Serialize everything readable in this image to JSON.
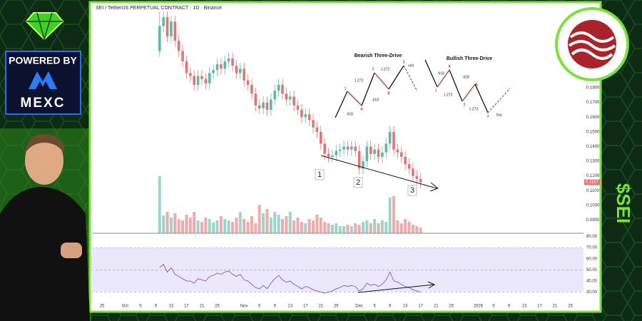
{
  "chart_data": {
    "type": "candlestick",
    "title": "SEI / TetherUS PERPETUAL CONTRACT · 1D · Binance",
    "up_color": "#5fb8a6",
    "down_color": "#e57373",
    "xlim": [
      -2.8,
      125.8
    ],
    "xticks": [
      {
        "value": 0,
        "label": "25"
      },
      {
        "value": 6,
        "label": "Oct"
      },
      {
        "value": 10,
        "label": "5"
      },
      {
        "value": 14,
        "label": "9"
      },
      {
        "value": 18,
        "label": "13"
      },
      {
        "value": 22,
        "label": "17"
      },
      {
        "value": 26,
        "label": "21"
      },
      {
        "value": 30,
        "label": "25"
      },
      {
        "value": 37,
        "label": "Nov"
      },
      {
        "value": 41,
        "label": "5"
      },
      {
        "value": 45,
        "label": "9"
      },
      {
        "value": 49,
        "label": "13"
      },
      {
        "value": 53,
        "label": "17"
      },
      {
        "value": 57,
        "label": "21"
      },
      {
        "value": 61,
        "label": "25"
      },
      {
        "value": 67,
        "label": "Dec"
      },
      {
        "value": 71,
        "label": "5"
      },
      {
        "value": 75,
        "label": "9"
      },
      {
        "value": 79,
        "label": "13"
      },
      {
        "value": 83,
        "label": "17"
      },
      {
        "value": 87,
        "label": "21"
      },
      {
        "value": 91,
        "label": "25"
      },
      {
        "value": 98,
        "label": "2026"
      },
      {
        "value": 102,
        "label": "5"
      },
      {
        "value": 106,
        "label": "9"
      },
      {
        "value": 110,
        "label": "13"
      },
      {
        "value": 114,
        "label": "17"
      },
      {
        "value": 118,
        "label": "21"
      },
      {
        "value": 122,
        "label": "25"
      }
    ],
    "ylim": [
      0.081,
      0.2373
    ],
    "yticks": [
      {
        "value": 0.09,
        "label": "0.0900"
      },
      {
        "value": 0.1,
        "label": "0.1000"
      },
      {
        "value": 0.11,
        "label": "0.1100"
      },
      {
        "value": 0.12,
        "label": "0.1200"
      },
      {
        "value": 0.13,
        "label": "0.1300"
      },
      {
        "value": 0.14,
        "label": "0.1400"
      },
      {
        "value": 0.15,
        "label": "0.1500"
      },
      {
        "value": 0.16,
        "label": "0.1600"
      },
      {
        "value": 0.17,
        "label": "0.1700"
      },
      {
        "value": 0.18,
        "label": "0.1800"
      }
    ],
    "x": [
      15,
      16,
      17,
      18,
      19,
      20,
      21,
      22,
      23,
      24,
      25,
      26,
      27,
      28,
      29,
      30,
      31,
      32,
      33,
      34,
      35,
      36,
      37,
      38,
      39,
      40,
      41,
      42,
      43,
      44,
      45,
      46,
      47,
      48,
      49,
      50,
      51,
      52,
      53,
      54,
      55,
      56,
      57,
      58,
      59,
      60,
      61,
      62,
      63,
      64,
      65,
      66,
      67,
      68,
      69,
      70,
      71,
      72,
      73,
      74,
      75,
      76,
      77,
      78,
      79,
      80,
      81,
      82,
      83
    ],
    "open": [
      0.205,
      0.222,
      0.228,
      0.215,
      0.225,
      0.212,
      0.205,
      0.198,
      0.19,
      0.188,
      0.182,
      0.188,
      0.186,
      0.183,
      0.19,
      0.192,
      0.196,
      0.193,
      0.198,
      0.2,
      0.195,
      0.19,
      0.193,
      0.185,
      0.182,
      0.176,
      0.168,
      0.166,
      0.17,
      0.165,
      0.172,
      0.178,
      0.182,
      0.176,
      0.172,
      0.174,
      0.168,
      0.165,
      0.16,
      0.162,
      0.158,
      0.153,
      0.15,
      0.142,
      0.135,
      0.133,
      0.134,
      0.137,
      0.138,
      0.14,
      0.138,
      0.14,
      0.137,
      0.125,
      0.13,
      0.14,
      0.135,
      0.138,
      0.133,
      0.136,
      0.142,
      0.15,
      0.138,
      0.136,
      0.133,
      0.128,
      0.125,
      0.12,
      0.118
    ],
    "high": [
      0.232,
      0.232,
      0.232,
      0.229,
      0.229,
      0.216,
      0.209,
      0.202,
      0.194,
      0.192,
      0.192,
      0.192,
      0.19,
      0.194,
      0.196,
      0.2,
      0.2,
      0.202,
      0.204,
      0.204,
      0.199,
      0.197,
      0.197,
      0.189,
      0.186,
      0.18,
      0.172,
      0.174,
      0.174,
      0.176,
      0.182,
      0.186,
      0.186,
      0.18,
      0.178,
      0.178,
      0.172,
      0.169,
      0.166,
      0.166,
      0.162,
      0.157,
      0.154,
      0.146,
      0.139,
      0.138,
      0.141,
      0.142,
      0.144,
      0.144,
      0.144,
      0.144,
      0.141,
      0.134,
      0.144,
      0.144,
      0.142,
      0.142,
      0.14,
      0.146,
      0.154,
      0.154,
      0.142,
      0.14,
      0.137,
      0.132,
      0.129,
      0.124,
      0.122
    ],
    "low": [
      0.201,
      0.218,
      0.211,
      0.211,
      0.208,
      0.201,
      0.194,
      0.186,
      0.184,
      0.178,
      0.178,
      0.182,
      0.179,
      0.179,
      0.186,
      0.188,
      0.189,
      0.189,
      0.194,
      0.191,
      0.186,
      0.186,
      0.181,
      0.178,
      0.172,
      0.164,
      0.162,
      0.162,
      0.161,
      0.161,
      0.168,
      0.174,
      0.172,
      0.168,
      0.168,
      0.164,
      0.161,
      0.156,
      0.156,
      0.154,
      0.149,
      0.146,
      0.138,
      0.131,
      0.129,
      0.129,
      0.13,
      0.133,
      0.134,
      0.134,
      0.134,
      0.133,
      0.121,
      0.121,
      0.126,
      0.131,
      0.131,
      0.129,
      0.129,
      0.132,
      0.138,
      0.134,
      0.132,
      0.129,
      0.124,
      0.121,
      0.116,
      0.114,
      0.1117
    ],
    "close": [
      0.222,
      0.228,
      0.215,
      0.225,
      0.212,
      0.205,
      0.198,
      0.19,
      0.188,
      0.182,
      0.188,
      0.186,
      0.183,
      0.19,
      0.192,
      0.196,
      0.193,
      0.198,
      0.2,
      0.195,
      0.19,
      0.193,
      0.185,
      0.182,
      0.176,
      0.168,
      0.166,
      0.17,
      0.165,
      0.172,
      0.178,
      0.182,
      0.176,
      0.172,
      0.174,
      0.168,
      0.165,
      0.16,
      0.162,
      0.158,
      0.153,
      0.15,
      0.142,
      0.135,
      0.133,
      0.134,
      0.137,
      0.138,
      0.14,
      0.138,
      0.14,
      0.137,
      0.125,
      0.13,
      0.14,
      0.135,
      0.138,
      0.133,
      0.136,
      0.142,
      0.15,
      0.138,
      0.136,
      0.133,
      0.128,
      0.125,
      0.12,
      0.118,
      0.1157
    ],
    "last_label": "0.1157",
    "volume_ylim": [
      0,
      100
    ],
    "volume": [
      80,
      25,
      30,
      22,
      28,
      20,
      18,
      26,
      22,
      30,
      18,
      16,
      22,
      20,
      15,
      18,
      24,
      20,
      18,
      16,
      22,
      30,
      20,
      16,
      24,
      14,
      40,
      28,
      34,
      22,
      30,
      26,
      20,
      24,
      30,
      18,
      22,
      16,
      14,
      20,
      18,
      26,
      22,
      16,
      14,
      12,
      14,
      10,
      10,
      12,
      10,
      14,
      12,
      16,
      18,
      14,
      20,
      14,
      18,
      16,
      50,
      52,
      18,
      14,
      20,
      16,
      12,
      10,
      8
    ],
    "rsi_ylim": [
      20,
      81
    ],
    "rsi_yticks": [
      {
        "value": 30,
        "label": "30.00"
      },
      {
        "value": 40,
        "label": "40.00"
      },
      {
        "value": 50,
        "label": "50.00"
      },
      {
        "value": 60,
        "label": "60.00"
      },
      {
        "value": 70,
        "label": "70.00"
      },
      {
        "value": 80,
        "label": "80.00"
      }
    ],
    "rsi": [
      52,
      55,
      48,
      52,
      46,
      44,
      42,
      40,
      40,
      38,
      42,
      41,
      40,
      44,
      45,
      47,
      46,
      48,
      49,
      46,
      44,
      46,
      41,
      40,
      37,
      34,
      33,
      36,
      33,
      38,
      42,
      45,
      41,
      39,
      40,
      37,
      35,
      33,
      35,
      34,
      32,
      31,
      30,
      29,
      30,
      31,
      33,
      34,
      36,
      35,
      36,
      35,
      31,
      33,
      38,
      36,
      37,
      35,
      37,
      41,
      48,
      40,
      39,
      37,
      35,
      34,
      32,
      31,
      30
    ],
    "drive_labels": [
      "1",
      "2",
      "3"
    ],
    "patterns": [
      {
        "title": "Bearish Three-Drive",
        "labels": [
          "1",
          "A",
          "2",
          "B",
          "3",
          "1.272",
          "1.272",
          ".618",
          ".618",
          "sell"
        ]
      },
      {
        "title": "Bullish Three-Drive",
        "labels": [
          "1",
          "A",
          "2",
          "B",
          "3",
          ".618",
          ".618",
          "1.272",
          "1.273",
          "buy"
        ]
      }
    ]
  },
  "branding": {
    "powered": "POWERED BY",
    "exchange": "MEXC",
    "ticker": "$SEI"
  }
}
